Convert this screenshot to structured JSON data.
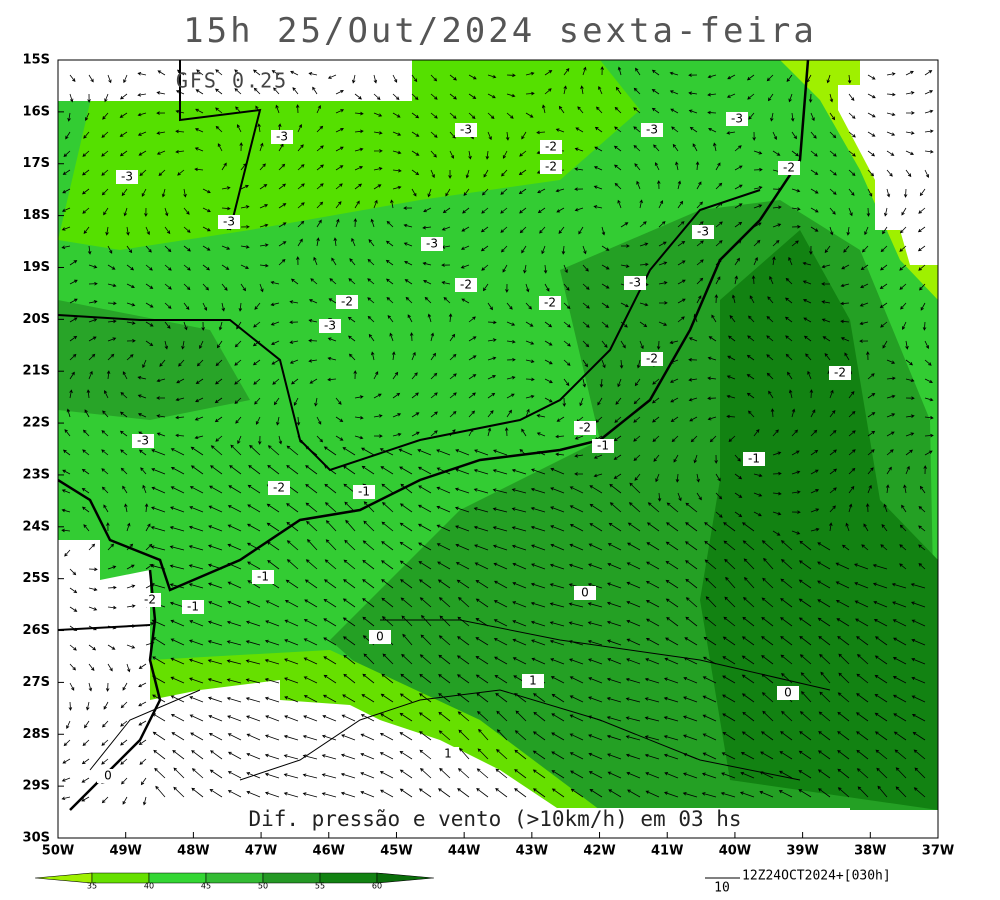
{
  "title": "15h 25/Out/2024 sexta-feira",
  "model": "GFS 0.25",
  "subtitle": "Dif. pressão e vento (>10km/h) em 03 hs",
  "lat_labels": [
    "15S",
    "16S",
    "17S",
    "18S",
    "19S",
    "20S",
    "21S",
    "22S",
    "23S",
    "24S",
    "25S",
    "26S",
    "27S",
    "28S",
    "29S",
    "30S"
  ],
  "lon_labels": [
    "50W",
    "49W",
    "48W",
    "47W",
    "46W",
    "45W",
    "44W",
    "43W",
    "42W",
    "41W",
    "40W",
    "39W",
    "38W",
    "37W"
  ],
  "colorbar_labels": [
    35,
    40,
    45,
    50,
    55,
    60
  ],
  "contour_labels": [
    "-3",
    "-3",
    "-2",
    "-2",
    "-3",
    "-3",
    "-2",
    "-3",
    "-3",
    "-3",
    "-3",
    "-2",
    "-3",
    "-2",
    "-2",
    "-3",
    "-2",
    "-2",
    "-3",
    "-2",
    "-1",
    "-1",
    "-2",
    "-1",
    "-1",
    "0",
    "-2",
    "-1",
    "0",
    "1",
    "0",
    "1",
    "0"
  ],
  "vector_scale": "10",
  "run": "12Z24OCT2024+[030h]"
}
